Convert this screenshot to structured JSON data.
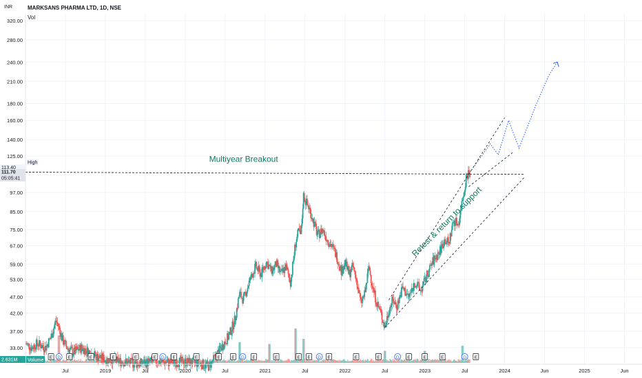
{
  "header": {
    "symbol": "MARKSANS PHARMA LTD, 1D, NSE",
    "volume_label": "Vol",
    "currency": "INR"
  },
  "badges": {
    "high_label": "High",
    "high_value": "113.40",
    "last_price": "111.70",
    "countdown": "05:05:41",
    "volume_value": "2.631M",
    "volume_tag": "Volume"
  },
  "colors": {
    "up": "#26a69a",
    "down": "#ef5350",
    "annotation": "#0e7a5f",
    "projection": "#2962ff",
    "grid": "#f0f3fa",
    "axis_text": "#131722",
    "badge_teal": "#26a69a"
  },
  "chart_data": {
    "type": "candlestick",
    "title": "MARKSANS PHARMA LTD, 1D, NSE",
    "y_scale": "log",
    "y_ticks": [
      33.0,
      37.0,
      42.0,
      47.0,
      53.0,
      59.0,
      67.0,
      75.0,
      85.0,
      97.0,
      111.7,
      125.0,
      140.0,
      160.0,
      180.0,
      210.0,
      240.0,
      280.0,
      320.0
    ],
    "y_tick_labels": [
      "33.00",
      "37.00",
      "42.00",
      "47.00",
      "53.00",
      "59.00",
      "67.00",
      "75.00",
      "85.00",
      "97.00",
      "",
      "125.00",
      "140.00",
      "160.00",
      "180.00",
      "210.00",
      "240.00",
      "280.00",
      "320.00"
    ],
    "x_ticks": [
      {
        "t": 2018.5,
        "label": "Jul"
      },
      {
        "t": 2019.0,
        "label": "2019"
      },
      {
        "t": 2019.5,
        "label": "Jul"
      },
      {
        "t": 2020.0,
        "label": "2020"
      },
      {
        "t": 2020.5,
        "label": "Jul"
      },
      {
        "t": 2021.0,
        "label": "2021"
      },
      {
        "t": 2021.5,
        "label": "Jul"
      },
      {
        "t": 2022.0,
        "label": "2022"
      },
      {
        "t": 2022.5,
        "label": "Jul"
      },
      {
        "t": 2023.0,
        "label": "2023"
      },
      {
        "t": 2023.5,
        "label": "Jul"
      },
      {
        "t": 2024.0,
        "label": "2024"
      },
      {
        "t": 2024.5,
        "label": "Jun"
      },
      {
        "t": 2025.0,
        "label": "2025"
      },
      {
        "t": 2025.5,
        "label": "Jun"
      }
    ],
    "price_path": [
      [
        2018.0,
        34
      ],
      [
        2018.08,
        33
      ],
      [
        2018.15,
        34
      ],
      [
        2018.25,
        33
      ],
      [
        2018.33,
        36
      ],
      [
        2018.38,
        40
      ],
      [
        2018.42,
        38
      ],
      [
        2018.46,
        35
      ],
      [
        2018.52,
        33
      ],
      [
        2018.6,
        32
      ],
      [
        2018.7,
        33
      ],
      [
        2018.8,
        32
      ],
      [
        2018.9,
        31
      ],
      [
        2019.0,
        30.5
      ],
      [
        2019.2,
        30
      ],
      [
        2019.4,
        29.5
      ],
      [
        2019.6,
        30
      ],
      [
        2019.8,
        29.8
      ],
      [
        2020.0,
        30
      ],
      [
        2020.2,
        29.5
      ],
      [
        2020.3,
        29
      ],
      [
        2020.45,
        33
      ],
      [
        2020.55,
        36
      ],
      [
        2020.62,
        40
      ],
      [
        2020.68,
        48
      ],
      [
        2020.73,
        46
      ],
      [
        2020.8,
        52
      ],
      [
        2020.88,
        58
      ],
      [
        2020.95,
        55
      ],
      [
        2021.02,
        60
      ],
      [
        2021.08,
        56
      ],
      [
        2021.14,
        59
      ],
      [
        2021.2,
        55
      ],
      [
        2021.26,
        58
      ],
      [
        2021.32,
        52
      ],
      [
        2021.38,
        68
      ],
      [
        2021.42,
        74
      ],
      [
        2021.45,
        72
      ],
      [
        2021.48,
        95
      ],
      [
        2021.52,
        90
      ],
      [
        2021.56,
        86
      ],
      [
        2021.6,
        80
      ],
      [
        2021.66,
        72
      ],
      [
        2021.72,
        75
      ],
      [
        2021.78,
        70
      ],
      [
        2021.85,
        66
      ],
      [
        2021.9,
        62
      ],
      [
        2021.96,
        56
      ],
      [
        2022.0,
        60
      ],
      [
        2022.05,
        55
      ],
      [
        2022.1,
        58
      ],
      [
        2022.15,
        52
      ],
      [
        2022.2,
        45
      ],
      [
        2022.25,
        48
      ],
      [
        2022.3,
        58
      ],
      [
        2022.35,
        50
      ],
      [
        2022.4,
        45
      ],
      [
        2022.45,
        42
      ],
      [
        2022.5,
        38
      ],
      [
        2022.55,
        43
      ],
      [
        2022.6,
        46
      ],
      [
        2022.65,
        44
      ],
      [
        2022.72,
        50
      ],
      [
        2022.8,
        47
      ],
      [
        2022.88,
        52
      ],
      [
        2022.95,
        49
      ],
      [
        2023.02,
        54
      ],
      [
        2023.1,
        60
      ],
      [
        2023.18,
        64
      ],
      [
        2023.25,
        70
      ],
      [
        2023.3,
        68
      ],
      [
        2023.36,
        80
      ],
      [
        2023.42,
        78
      ],
      [
        2023.47,
        92
      ],
      [
        2023.52,
        108
      ],
      [
        2023.55,
        112
      ],
      [
        2023.57,
        111.7
      ]
    ],
    "volume_spikes": [
      {
        "t": 2018.42,
        "v": 0.8
      },
      {
        "t": 2020.68,
        "v": 0.6
      },
      {
        "t": 2021.05,
        "v": 0.55
      },
      {
        "t": 2021.38,
        "v": 1.0
      },
      {
        "t": 2021.48,
        "v": 0.7
      },
      {
        "t": 2022.5,
        "v": 0.35
      },
      {
        "t": 2023.0,
        "v": 0.35
      },
      {
        "t": 2023.47,
        "v": 0.5
      }
    ],
    "event_markers": [
      {
        "t": 2018.32,
        "label": "E"
      },
      {
        "t": 2018.42,
        "label": "D"
      },
      {
        "t": 2018.55,
        "label": "E"
      },
      {
        "t": 2018.82,
        "label": "E"
      },
      {
        "t": 2019.1,
        "label": "E"
      },
      {
        "t": 2019.38,
        "label": "E"
      },
      {
        "t": 2019.62,
        "label": "E"
      },
      {
        "t": 2019.72,
        "label": "D"
      },
      {
        "t": 2019.86,
        "label": "E"
      },
      {
        "t": 2020.14,
        "label": "E"
      },
      {
        "t": 2020.42,
        "label": "E"
      },
      {
        "t": 2020.6,
        "label": "E"
      },
      {
        "t": 2020.72,
        "label": "D"
      },
      {
        "t": 2020.86,
        "label": "E"
      },
      {
        "t": 2021.14,
        "label": "E"
      },
      {
        "t": 2021.42,
        "label": "E"
      },
      {
        "t": 2021.55,
        "label": "E"
      },
      {
        "t": 2021.68,
        "label": "D"
      },
      {
        "t": 2021.8,
        "label": "E"
      },
      {
        "t": 2022.14,
        "label": "E"
      },
      {
        "t": 2022.42,
        "label": "E"
      },
      {
        "t": 2022.66,
        "label": "D"
      },
      {
        "t": 2022.8,
        "label": "E"
      },
      {
        "t": 2023.0,
        "label": "E"
      },
      {
        "t": 2023.22,
        "label": "E"
      },
      {
        "t": 2023.5,
        "label": "D"
      },
      {
        "t": 2023.64,
        "label": "E"
      }
    ],
    "breakout_level": 111.7,
    "breakout_range": [
      2018.0,
      2024.25
    ],
    "annotations": [
      {
        "text": "Multiyear Breakout",
        "t": 2020.3,
        "price": 120,
        "angle": 0
      },
      {
        "text": "Retest &amp; return to support",
        "t": 2022.88,
        "price": 62,
        "angle": -45
      }
    ],
    "channel_upper": [
      [
        2022.55,
        46
      ],
      [
        2024.0,
        163
      ]
    ],
    "channel_lower": [
      [
        2022.5,
        38
      ],
      [
        2024.25,
        108
      ]
    ],
    "channel_mid_short": [
      [
        2023.55,
        101
      ],
      [
        2024.1,
        128
      ]
    ],
    "projection_path": [
      [
        2023.57,
        112
      ],
      [
        2023.68,
        122
      ],
      [
        2023.82,
        136
      ],
      [
        2023.92,
        126
      ],
      [
        2024.05,
        160
      ],
      [
        2024.18,
        132
      ],
      [
        2024.4,
        180
      ],
      [
        2024.55,
        218
      ],
      [
        2024.66,
        240
      ]
    ]
  }
}
